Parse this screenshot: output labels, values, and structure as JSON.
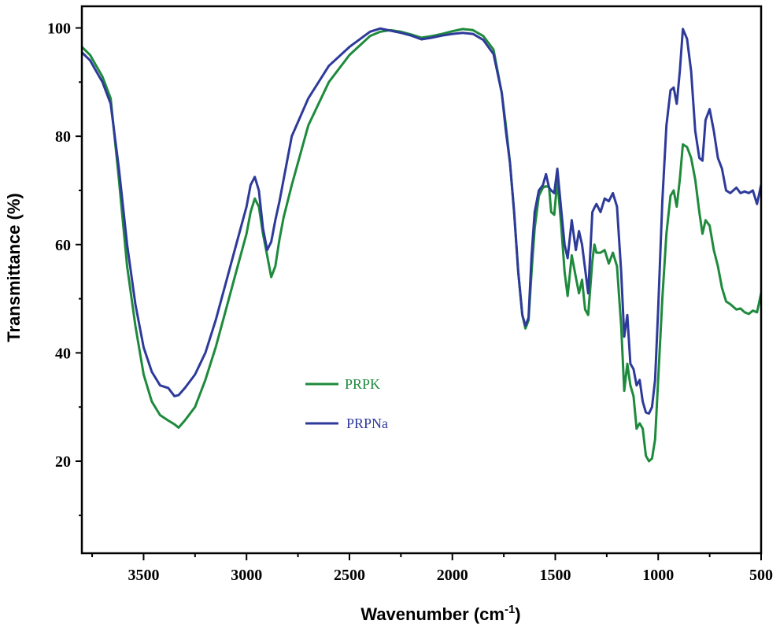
{
  "chart_data": {
    "type": "line",
    "title": "",
    "xlabel": "Wavenumber (cm",
    "xlabel_superscript": "-1",
    "xlabel_close": ")",
    "ylabel": "Transmittance (%)",
    "xlim": [
      3800,
      500
    ],
    "ylim": [
      3,
      104
    ],
    "x_ticks": [
      3500,
      3000,
      2500,
      2000,
      1500,
      1000,
      500
    ],
    "x_tick_labels": [
      "3500",
      "3000",
      "2500",
      "2000",
      "1500",
      "1000",
      "500"
    ],
    "y_ticks": [
      20,
      40,
      60,
      80,
      100
    ],
    "y_tick_labels": [
      "20",
      "40",
      "60",
      "80",
      "100"
    ],
    "grid": false,
    "legend_position": "center-left",
    "series": [
      {
        "name": "PRPK",
        "color": "#1e8a3c",
        "x": [
          3800,
          3760,
          3730,
          3700,
          3660,
          3620,
          3580,
          3540,
          3500,
          3460,
          3420,
          3380,
          3350,
          3330,
          3300,
          3250,
          3200,
          3150,
          3100,
          3050,
          3000,
          2980,
          2960,
          2940,
          2920,
          2900,
          2880,
          2860,
          2840,
          2820,
          2780,
          2700,
          2600,
          2500,
          2400,
          2350,
          2300,
          2250,
          2200,
          2150,
          2100,
          2050,
          2000,
          1950,
          1900,
          1850,
          1800,
          1760,
          1740,
          1720,
          1700,
          1680,
          1660,
          1645,
          1630,
          1615,
          1600,
          1580,
          1560,
          1545,
          1530,
          1520,
          1505,
          1490,
          1470,
          1455,
          1440,
          1420,
          1400,
          1385,
          1370,
          1355,
          1340,
          1320,
          1310,
          1300,
          1280,
          1260,
          1240,
          1220,
          1200,
          1180,
          1165,
          1150,
          1135,
          1120,
          1105,
          1090,
          1075,
          1060,
          1045,
          1030,
          1015,
          1000,
          980,
          960,
          940,
          925,
          910,
          895,
          880,
          860,
          840,
          820,
          800,
          785,
          770,
          750,
          730,
          710,
          690,
          670,
          650,
          620,
          600,
          580,
          560,
          540,
          520,
          500
        ],
        "y": [
          96.5,
          95,
          93,
          91,
          87,
          72,
          56,
          45,
          36,
          31,
          28.5,
          27.5,
          26.8,
          26.2,
          27.5,
          30,
          35,
          41,
          48,
          55,
          62,
          66,
          68.5,
          67,
          62,
          58,
          54,
          56,
          61,
          65,
          71,
          82,
          90,
          95,
          98.5,
          99.3,
          99.6,
          99.3,
          98.8,
          98.2,
          98.5,
          98.9,
          99.4,
          99.8,
          99.6,
          98.5,
          96,
          88,
          82,
          75,
          66,
          55,
          47,
          44.5,
          46,
          55,
          63,
          69,
          70.5,
          70.8,
          70.6,
          66,
          65.5,
          72,
          63,
          55,
          50.5,
          58,
          54,
          51,
          53.5,
          48,
          47,
          57,
          60,
          58.5,
          58.5,
          59,
          56.5,
          58.5,
          56,
          45,
          33,
          38,
          34,
          32,
          26,
          27,
          26,
          21,
          20,
          20.5,
          24,
          35,
          50,
          62,
          69,
          70,
          67,
          72,
          78.5,
          78,
          76,
          72,
          66,
          62,
          64.5,
          63.5,
          59,
          56,
          52,
          49.5,
          49,
          48,
          48.2,
          47.5,
          47.2,
          47.8,
          47.5,
          51
        ]
      },
      {
        "name": "PRPNa",
        "color": "#2e3a9a",
        "x": [
          3800,
          3760,
          3730,
          3700,
          3660,
          3620,
          3580,
          3540,
          3500,
          3460,
          3420,
          3380,
          3350,
          3330,
          3300,
          3250,
          3200,
          3150,
          3100,
          3050,
          3000,
          2980,
          2960,
          2940,
          2920,
          2900,
          2880,
          2860,
          2840,
          2820,
          2780,
          2700,
          2600,
          2500,
          2400,
          2350,
          2300,
          2250,
          2200,
          2150,
          2100,
          2050,
          2000,
          1950,
          1900,
          1850,
          1800,
          1760,
          1740,
          1720,
          1700,
          1680,
          1660,
          1645,
          1630,
          1615,
          1600,
          1580,
          1560,
          1545,
          1530,
          1520,
          1505,
          1490,
          1470,
          1455,
          1440,
          1420,
          1400,
          1385,
          1370,
          1355,
          1340,
          1320,
          1310,
          1300,
          1280,
          1260,
          1240,
          1220,
          1200,
          1180,
          1165,
          1150,
          1135,
          1120,
          1105,
          1090,
          1075,
          1060,
          1045,
          1030,
          1015,
          1000,
          980,
          960,
          940,
          925,
          910,
          895,
          880,
          860,
          840,
          820,
          800,
          785,
          770,
          750,
          730,
          710,
          690,
          670,
          650,
          620,
          600,
          580,
          560,
          540,
          520,
          500
        ],
        "y": [
          95.5,
          94,
          92,
          90,
          86,
          74,
          60,
          49,
          41,
          36.5,
          34,
          33.5,
          32,
          32.2,
          33.5,
          36,
          40,
          46,
          53,
          60,
          67,
          71,
          72.5,
          70,
          63,
          59,
          60.5,
          64.5,
          68,
          72,
          80,
          87,
          93,
          96.5,
          99.3,
          99.9,
          99.5,
          99.1,
          98.6,
          97.9,
          98.2,
          98.6,
          98.9,
          99.1,
          98.9,
          97.8,
          95.2,
          88,
          81,
          75,
          66,
          55,
          47,
          45,
          46.5,
          58,
          66,
          70,
          71,
          73,
          70.5,
          70,
          69.5,
          74,
          66,
          60,
          57.5,
          64.5,
          59,
          62.5,
          60,
          55.5,
          51,
          66,
          66.8,
          67.5,
          66,
          68.5,
          68,
          69.5,
          67,
          55,
          43,
          47,
          38,
          37,
          34,
          35,
          31,
          29,
          28.8,
          30,
          35,
          48,
          68,
          82,
          88.5,
          89,
          86,
          92,
          99.8,
          98,
          92,
          81,
          76,
          75.5,
          83,
          85,
          81,
          76,
          74,
          70,
          69.5,
          70.5,
          69.5,
          69.8,
          69.5,
          70,
          67.5,
          71
        ]
      }
    ]
  }
}
